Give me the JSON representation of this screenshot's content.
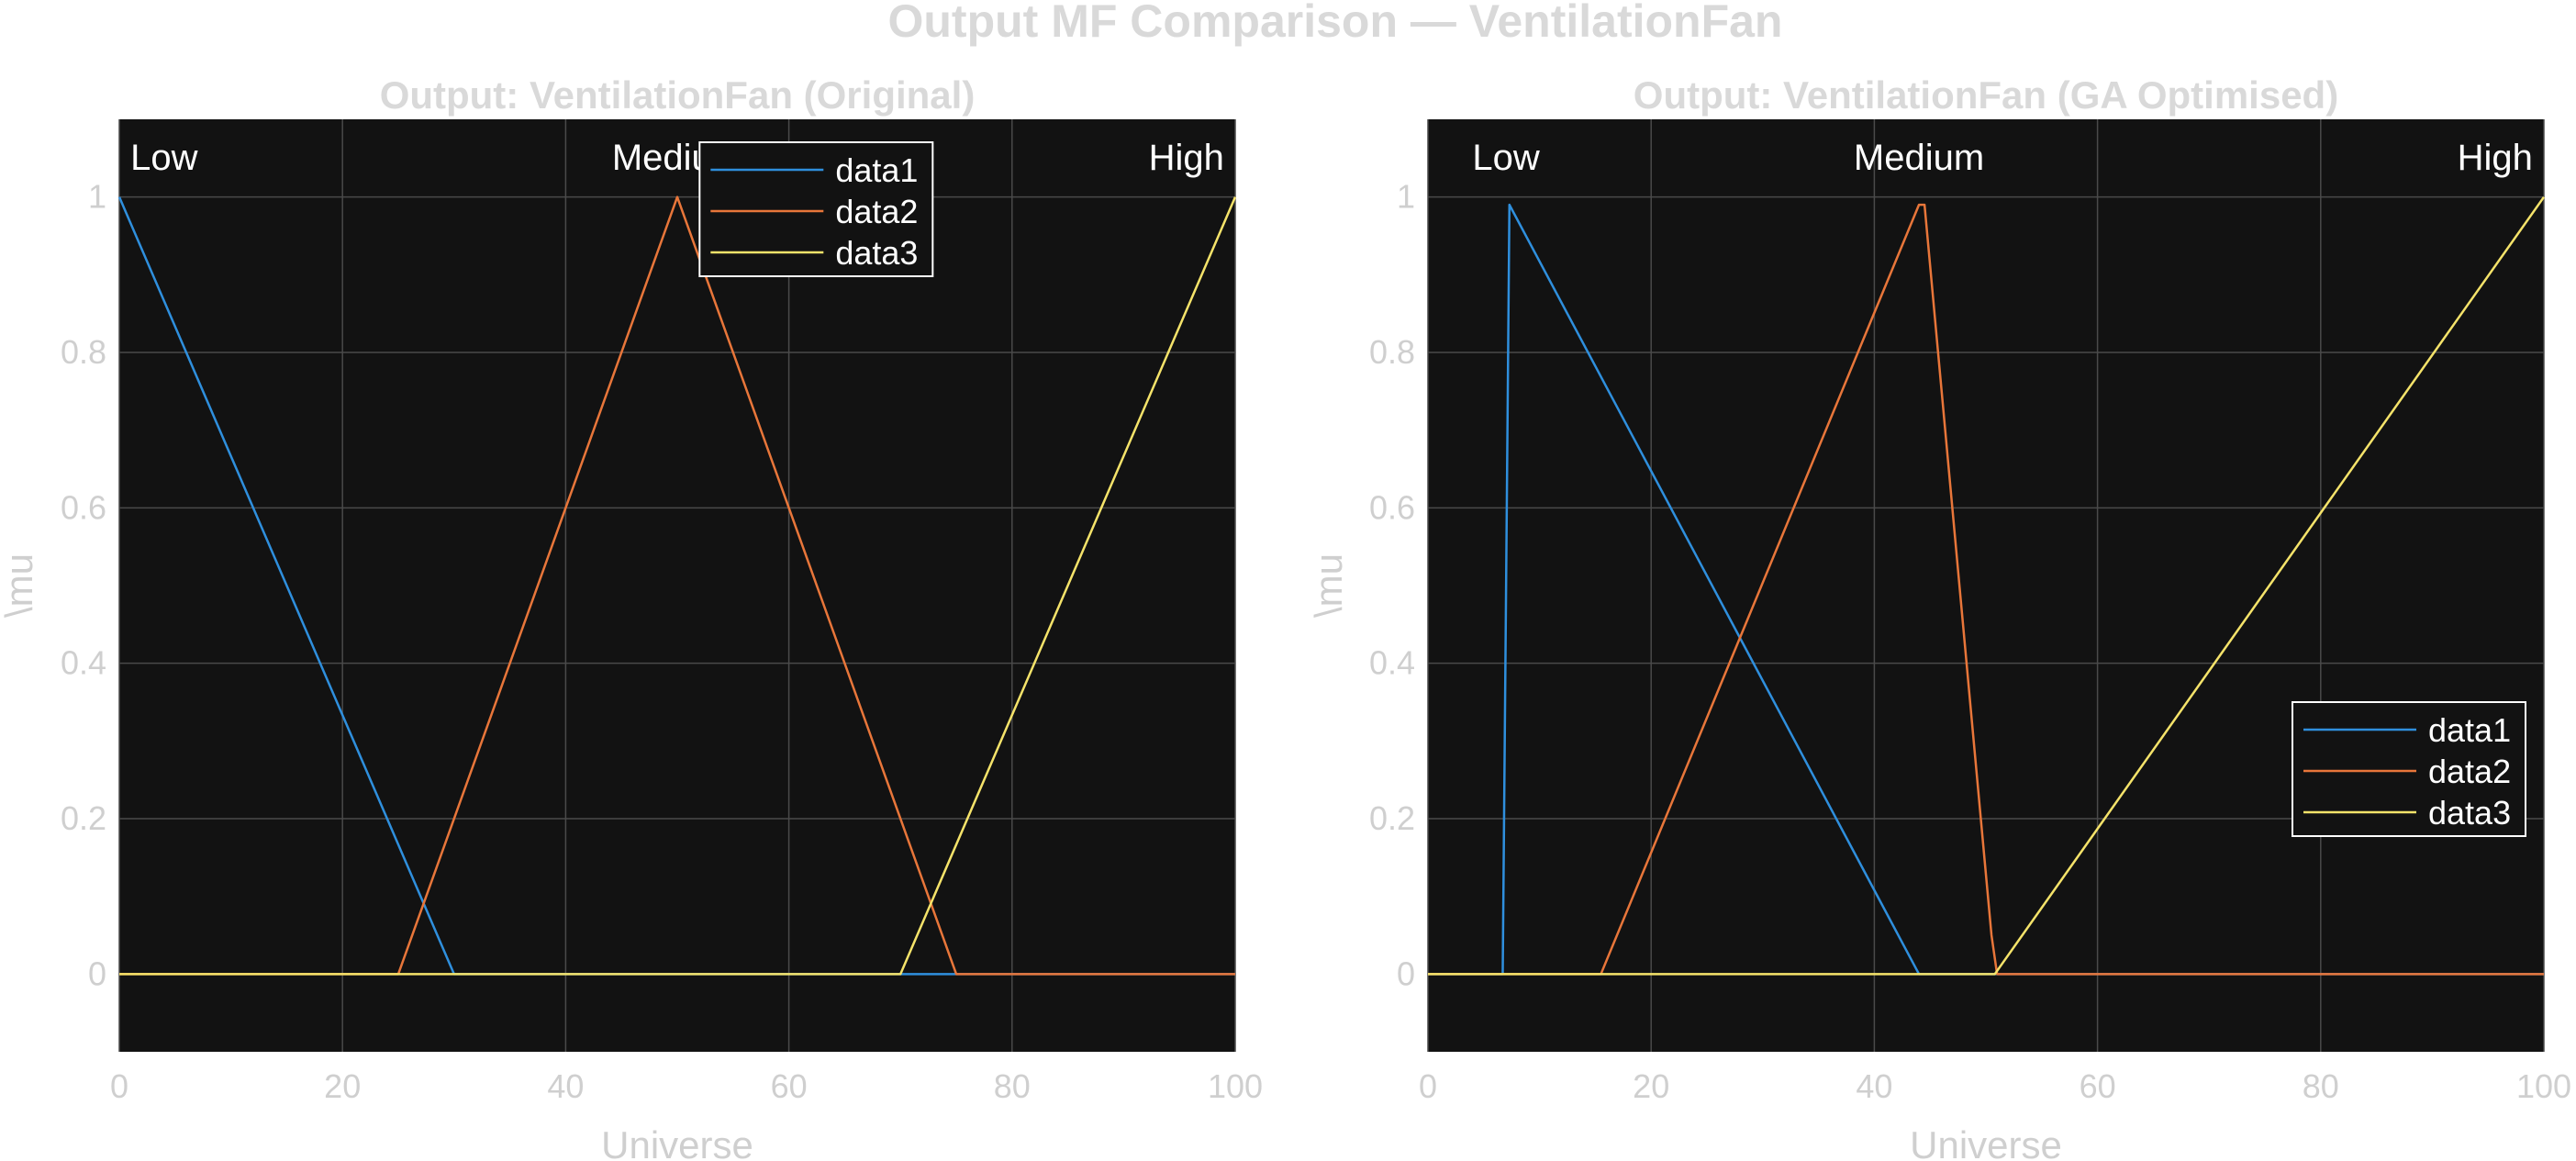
{
  "figure": {
    "title": "Output MF Comparison — VentilationFan",
    "background": "#ffffff",
    "axes_background": "#121212",
    "grid_color": "#4a4a4a",
    "series_colors": [
      "#2f8fdd",
      "#e8763a",
      "#f5e36a"
    ]
  },
  "chart_data": [
    {
      "type": "line",
      "title": "Output: VentilationFan (Original)",
      "xlabel": "Universe",
      "ylabel": "\\mu",
      "xlim": [
        0,
        100
      ],
      "ylim": [
        -0.1,
        1.1
      ],
      "xticks": [
        0,
        20,
        40,
        60,
        80,
        100
      ],
      "xtick_labels": [
        "0",
        "20",
        "40",
        "60",
        "80",
        "100"
      ],
      "yticks": [
        0,
        0.2,
        0.4,
        0.6,
        0.8,
        1
      ],
      "ytick_labels": [
        "0",
        "0.2",
        "0.4",
        "0.6",
        "0.8",
        "1"
      ],
      "grid": true,
      "legend": {
        "placement": "top-center",
        "entries": [
          "data1",
          "data2",
          "data3"
        ]
      },
      "mf_labels": [
        {
          "text": "Low",
          "x": 1,
          "anchor": "start"
        },
        {
          "text": "Medium",
          "x": 50,
          "anchor": "middle"
        },
        {
          "text": "High",
          "x": 99,
          "anchor": "end"
        }
      ],
      "series": [
        {
          "name": "data1",
          "x": [
            0,
            30,
            100
          ],
          "y": [
            1,
            0,
            0
          ]
        },
        {
          "name": "data2",
          "x": [
            0,
            25,
            50,
            75,
            100
          ],
          "y": [
            0,
            0,
            1,
            0,
            0
          ]
        },
        {
          "name": "data3",
          "x": [
            0,
            70,
            100
          ],
          "y": [
            0,
            0,
            1
          ]
        }
      ]
    },
    {
      "type": "line",
      "title": "Output: VentilationFan (GA Optimised)",
      "xlabel": "Universe",
      "ylabel": "\\mu",
      "xlim": [
        0,
        100
      ],
      "ylim": [
        -0.1,
        1.1
      ],
      "xticks": [
        0,
        20,
        40,
        60,
        80,
        100
      ],
      "xtick_labels": [
        "0",
        "20",
        "40",
        "60",
        "80",
        "100"
      ],
      "yticks": [
        0,
        0.2,
        0.4,
        0.6,
        0.8,
        1
      ],
      "ytick_labels": [
        "0",
        "0.2",
        "0.4",
        "0.6",
        "0.8",
        "1"
      ],
      "grid": true,
      "legend": {
        "placement": "bottom-right",
        "entries": [
          "data1",
          "data2",
          "data3"
        ]
      },
      "mf_labels": [
        {
          "text": "Low",
          "x": 7,
          "anchor": "middle"
        },
        {
          "text": "Medium",
          "x": 44,
          "anchor": "middle"
        },
        {
          "text": "High",
          "x": 99,
          "anchor": "end"
        }
      ],
      "series": [
        {
          "name": "data1",
          "x": [
            0,
            6.7,
            7.3,
            44,
            100
          ],
          "y": [
            0,
            0,
            0.99,
            0,
            0
          ]
        },
        {
          "name": "data2",
          "x": [
            0,
            15.5,
            44,
            44.5,
            50.5,
            51,
            100
          ],
          "y": [
            0,
            0,
            0.99,
            0.99,
            0.05,
            0,
            0
          ]
        },
        {
          "name": "data3",
          "x": [
            0,
            50.8,
            100
          ],
          "y": [
            0,
            0,
            1
          ]
        }
      ]
    }
  ]
}
